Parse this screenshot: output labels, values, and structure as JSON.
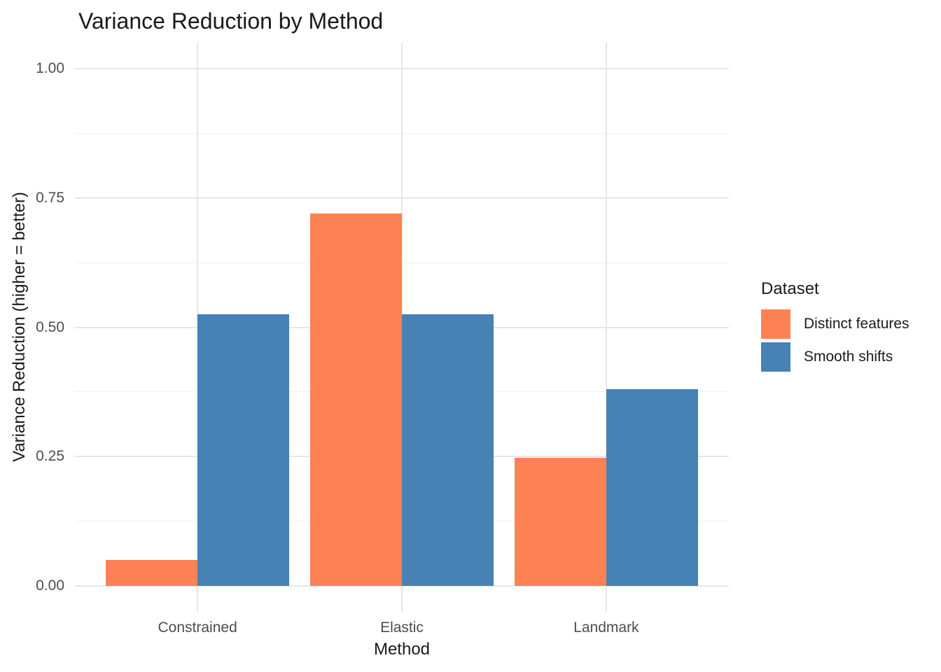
{
  "chart_data": {
    "type": "bar",
    "title": "Variance Reduction by Method",
    "xlabel": "Method",
    "ylabel": "Variance Reduction (higher = better)",
    "categories": [
      "Constrained",
      "Elastic",
      "Landmark"
    ],
    "series": [
      {
        "name": "Distinct features",
        "color": "#FC8153",
        "values": [
          0.05,
          0.72,
          0.247
        ]
      },
      {
        "name": "Smooth shifts",
        "color": "#4682B4",
        "values": [
          0.525,
          0.525,
          0.38
        ]
      }
    ],
    "legend": {
      "title": "Dataset",
      "position": "right",
      "entries": [
        "Distinct features",
        "Smooth shifts"
      ]
    },
    "ylim": [
      0,
      1
    ],
    "yticks": [
      {
        "label": "0.00",
        "value": 0
      },
      {
        "label": "0.25",
        "value": 0.25
      },
      {
        "label": "0.50",
        "value": 0.5
      },
      {
        "label": "0.75",
        "value": 0.75
      },
      {
        "label": "1.00",
        "value": 1
      }
    ],
    "y_minor_ticks": [
      0.125,
      0.375,
      0.625,
      0.875
    ],
    "grid": "horizontal major+minor on, vertical gridline at each category center, no axis lines",
    "bar_layout": "dodged"
  },
  "colors": {
    "distinct_features": "#FC8153",
    "smooth_shifts": "#4682B4",
    "grid_major": "#E6E6E6",
    "grid_minor": "#F0F0F0",
    "tick_label": "#4D4D4D",
    "text": "#1A1A1A",
    "background": "#FFFFFF"
  }
}
